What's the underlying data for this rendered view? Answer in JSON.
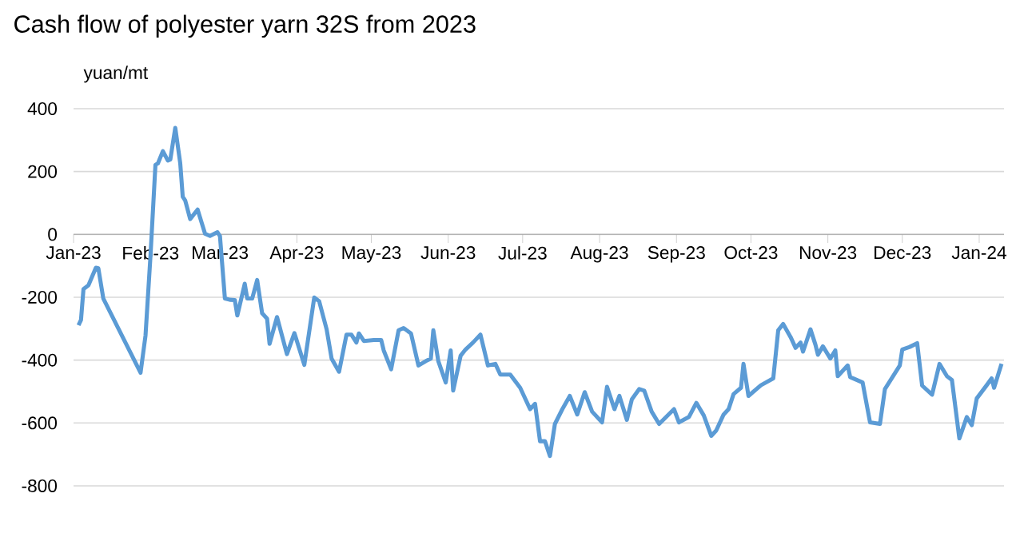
{
  "chart_data": {
    "type": "line",
    "title": "Cash flow of polyester yarn 32S from 2023",
    "ylabel": "yuan/mt",
    "x": [
      "2023-01-03",
      "2023-01-04",
      "2023-01-05",
      "2023-01-07",
      "2023-01-10",
      "2023-01-11",
      "2023-01-13",
      "2023-01-28",
      "2023-01-30",
      "2023-02-01",
      "2023-02-03",
      "2023-02-04",
      "2023-02-06",
      "2023-02-08",
      "2023-02-09",
      "2023-02-11",
      "2023-02-13",
      "2023-02-14",
      "2023-02-15",
      "2023-02-17",
      "2023-02-20",
      "2023-02-23",
      "2023-02-25",
      "2023-02-28",
      "2023-03-01",
      "2023-03-03",
      "2023-03-05",
      "2023-03-07",
      "2023-03-08",
      "2023-03-11",
      "2023-03-12",
      "2023-03-14",
      "2023-03-16",
      "2023-03-18",
      "2023-03-20",
      "2023-03-21",
      "2023-03-24",
      "2023-03-28",
      "2023-03-31",
      "2023-04-04",
      "2023-04-08",
      "2023-04-10",
      "2023-04-13",
      "2023-04-15",
      "2023-04-18",
      "2023-04-21",
      "2023-04-23",
      "2023-04-25",
      "2023-04-26",
      "2023-04-28",
      "2023-05-02",
      "2023-05-05",
      "2023-05-06",
      "2023-05-09",
      "2023-05-12",
      "2023-05-14",
      "2023-05-17",
      "2023-05-20",
      "2023-05-23",
      "2023-05-25",
      "2023-05-26",
      "2023-05-28",
      "2023-05-31",
      "2023-06-02",
      "2023-06-03",
      "2023-06-06",
      "2023-06-08",
      "2023-06-11",
      "2023-06-14",
      "2023-06-17",
      "2023-06-20",
      "2023-06-22",
      "2023-06-26",
      "2023-06-30",
      "2023-07-04",
      "2023-07-06",
      "2023-07-08",
      "2023-07-10",
      "2023-07-12",
      "2023-07-14",
      "2023-07-17",
      "2023-07-20",
      "2023-07-23",
      "2023-07-26",
      "2023-07-29",
      "2023-08-02",
      "2023-08-04",
      "2023-08-07",
      "2023-08-09",
      "2023-08-12",
      "2023-08-14",
      "2023-08-17",
      "2023-08-19",
      "2023-08-22",
      "2023-08-25",
      "2023-08-31",
      "2023-09-02",
      "2023-09-06",
      "2023-09-09",
      "2023-09-12",
      "2023-09-15",
      "2023-09-17",
      "2023-09-20",
      "2023-09-22",
      "2023-09-24",
      "2023-09-27",
      "2023-09-28",
      "2023-09-30",
      "2023-10-05",
      "2023-10-10",
      "2023-10-12",
      "2023-10-14",
      "2023-10-17",
      "2023-10-19",
      "2023-10-21",
      "2023-10-22",
      "2023-10-25",
      "2023-10-27",
      "2023-10-28",
      "2023-10-30",
      "2023-11-02",
      "2023-11-04",
      "2023-11-05",
      "2023-11-09",
      "2023-11-10",
      "2023-11-15",
      "2023-11-18",
      "2023-11-22",
      "2023-11-24",
      "2023-11-30",
      "2023-12-01",
      "2023-12-04",
      "2023-12-07",
      "2023-12-09",
      "2023-12-13",
      "2023-12-16",
      "2023-12-19",
      "2023-12-21",
      "2023-12-24",
      "2023-12-27",
      "2023-12-29",
      "2023-12-31",
      "2024-01-04",
      "2024-01-06",
      "2024-01-07",
      "2024-01-10"
    ],
    "series": [
      {
        "color": "#5b9bd5",
        "values": [
          -289,
          -272,
          -174,
          -162,
          -106,
          -108,
          -204,
          -440,
          -322,
          -69,
          221,
          226,
          265,
          235,
          238,
          339,
          226,
          120,
          108,
          49,
          79,
          2,
          -5,
          7,
          -5,
          -204,
          -208,
          -209,
          -258,
          -157,
          -204,
          -204,
          -145,
          -251,
          -268,
          -348,
          -263,
          -381,
          -314,
          -415,
          -201,
          -213,
          -302,
          -395,
          -437,
          -319,
          -319,
          -344,
          -315,
          -339,
          -336,
          -336,
          -369,
          -429,
          -305,
          -298,
          -315,
          -417,
          -403,
          -395,
          -305,
          -403,
          -471,
          -369,
          -497,
          -386,
          -366,
          -344,
          -319,
          -417,
          -412,
          -446,
          -446,
          -488,
          -556,
          -539,
          -658,
          -658,
          -705,
          -603,
          -556,
          -514,
          -573,
          -502,
          -564,
          -598,
          -485,
          -556,
          -514,
          -590,
          -525,
          -492,
          -497,
          -564,
          -603,
          -556,
          -598,
          -581,
          -536,
          -576,
          -641,
          -624,
          -573,
          -556,
          -508,
          -488,
          -412,
          -514,
          -480,
          -458,
          -305,
          -285,
          -327,
          -361,
          -344,
          -373,
          -302,
          -351,
          -383,
          -356,
          -395,
          -369,
          -451,
          -417,
          -454,
          -471,
          -598,
          -603,
          -492,
          -417,
          -366,
          -358,
          -346,
          -481,
          -510,
          -412,
          -451,
          -463,
          -649,
          -581,
          -607,
          -522,
          -480,
          -458,
          -488,
          -412
        ]
      }
    ],
    "xlim": [
      "2023-01-01",
      "2024-01-11"
    ],
    "xticks": [
      {
        "value": "2023-01-01",
        "label": "Jan-23"
      },
      {
        "value": "2023-02-01",
        "label": "Feb-23"
      },
      {
        "value": "2023-03-01",
        "label": "Mar-23"
      },
      {
        "value": "2023-04-01",
        "label": "Apr-23"
      },
      {
        "value": "2023-05-01",
        "label": "May-23"
      },
      {
        "value": "2023-06-01",
        "label": "Jun-23"
      },
      {
        "value": "2023-07-01",
        "label": "Jul-23"
      },
      {
        "value": "2023-08-01",
        "label": "Aug-23"
      },
      {
        "value": "2023-09-01",
        "label": "Sep-23"
      },
      {
        "value": "2023-10-01",
        "label": "Oct-23"
      },
      {
        "value": "2023-11-01",
        "label": "Nov-23"
      },
      {
        "value": "2023-12-01",
        "label": "Dec-23"
      },
      {
        "value": "2024-01-01",
        "label": "Jan-24"
      }
    ],
    "ylim": [
      -800,
      400
    ],
    "yticks": [
      -800,
      -600,
      -400,
      -200,
      0,
      200,
      400
    ],
    "grid": "y",
    "marker": "none",
    "line_style": "solid"
  }
}
